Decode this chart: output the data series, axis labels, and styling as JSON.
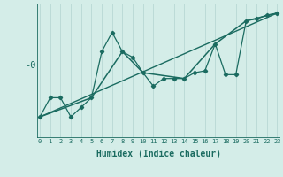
{
  "xlabel": "Humidex (Indice chaleur)",
  "bg_color": "#d4ede8",
  "line_color": "#1a6b60",
  "grid_color": "#b8d8d4",
  "hline_color": "#9ab8b4",
  "x_ticks": [
    0,
    1,
    2,
    3,
    4,
    5,
    6,
    7,
    8,
    9,
    10,
    11,
    12,
    13,
    14,
    15,
    16,
    17,
    18,
    19,
    20,
    21,
    22,
    23
  ],
  "xlim": [
    -0.3,
    23.3
  ],
  "ylim": [
    -1.9,
    1.6
  ],
  "ytick_labels": [
    "-0"
  ],
  "ytick_positions": [
    0.0
  ],
  "series1_x": [
    0,
    1,
    2,
    3,
    4,
    5,
    6,
    7,
    8,
    9,
    10,
    11,
    12,
    13,
    14,
    15,
    16,
    17,
    18,
    19,
    20,
    21,
    22,
    23
  ],
  "series1_y": [
    -1.35,
    -0.85,
    -0.85,
    -1.35,
    -1.1,
    -0.85,
    0.35,
    0.85,
    0.35,
    0.2,
    -0.2,
    -0.55,
    -0.35,
    -0.35,
    -0.35,
    -0.2,
    -0.15,
    0.55,
    -0.25,
    -0.25,
    1.15,
    1.2,
    1.3,
    1.35
  ],
  "series2_x": [
    0,
    5,
    8,
    10,
    14,
    17,
    20,
    23
  ],
  "series2_y": [
    -1.35,
    -0.85,
    0.35,
    -0.2,
    -0.35,
    0.55,
    1.15,
    1.35
  ],
  "series3_x": [
    0,
    23
  ],
  "series3_y": [
    -1.35,
    1.35
  ]
}
